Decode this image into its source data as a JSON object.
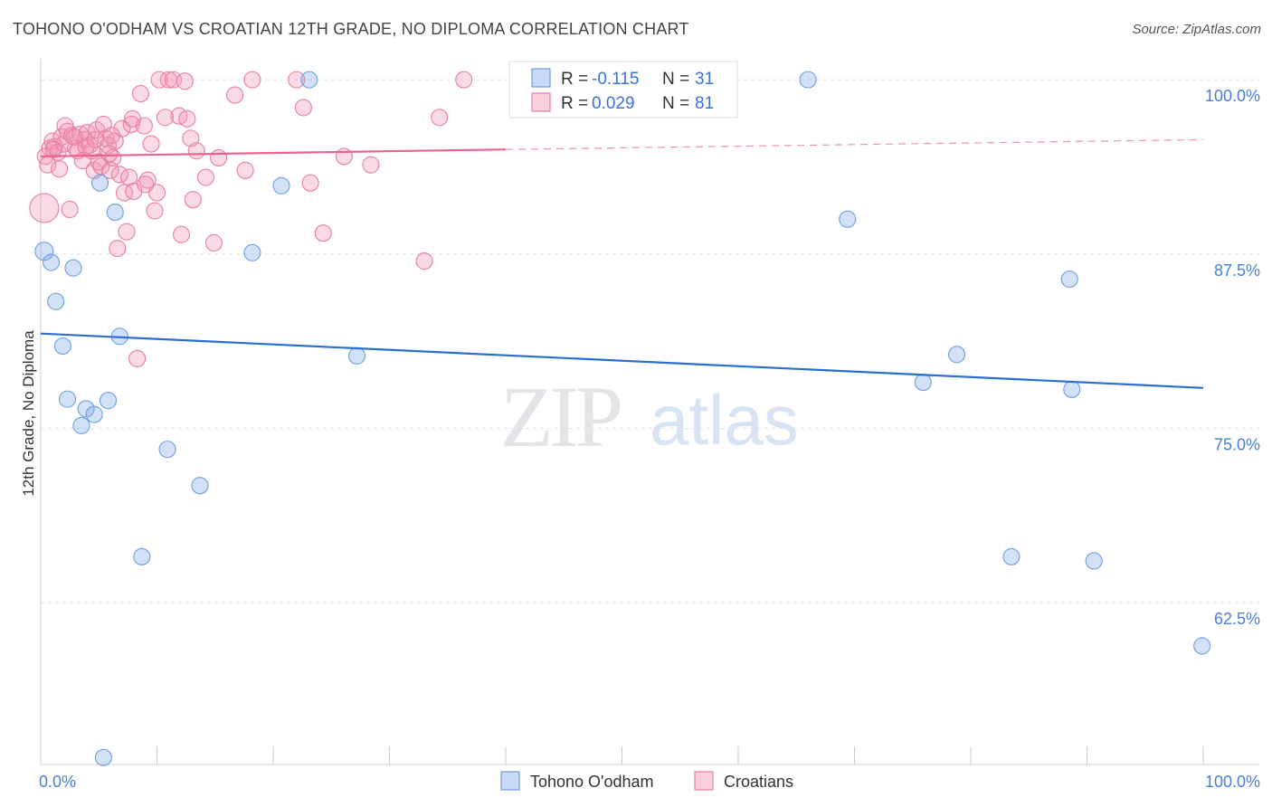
{
  "title": "TOHONO O'ODHAM VS CROATIAN 12TH GRADE, NO DIPLOMA CORRELATION CHART",
  "source": "Source: ZipAtlas.com",
  "watermark": {
    "zip": "ZIP",
    "atlas": "atlas"
  },
  "colors": {
    "blue": "#6f9fe0",
    "blue_fill": "rgba(130,170,230,0.35)",
    "blue_line": "#2a6fd0",
    "pink": "#e97fa0",
    "pink_fill": "rgba(240,150,180,0.35)",
    "pink_line": "#e8658f",
    "axis_text": "#4a7fd6",
    "grid": "#dde0e6"
  },
  "legend": {
    "rows": [
      {
        "r_label": "R = ",
        "r_value": "-0.115",
        "n_label": "N = ",
        "n_value": "31"
      },
      {
        "r_label": "R = ",
        "r_value": "0.029",
        "n_label": "N = ",
        "n_value": "81"
      }
    ]
  },
  "bottom_legend": [
    "Tohono O'odham",
    "Croatians"
  ],
  "chart_data": {
    "type": "scatter",
    "title": "TOHONO O'ODHAM VS CROATIAN 12TH GRADE, NO DIPLOMA CORRELATION CHART",
    "xlabel": "",
    "ylabel": "12th Grade, No Diploma",
    "xlim": [
      0,
      100
    ],
    "ylim": [
      50.9,
      101.5
    ],
    "x_tick_labels": [
      "0.0%",
      "100.0%"
    ],
    "y_ticks": [
      100.0,
      87.5,
      75.0,
      62.5
    ],
    "y_tick_labels": [
      "100.0%",
      "87.5%",
      "75.0%",
      "62.5%"
    ],
    "grid": true,
    "legend_position": "top-center",
    "series": [
      {
        "name": "Tohono O'odham",
        "color": "blue",
        "r": -0.115,
        "n": 31,
        "trend": {
          "x": [
            0,
            100
          ],
          "y": [
            81.8,
            77.9
          ]
        },
        "points": [
          [
            0.3,
            87.7,
            10
          ],
          [
            0.9,
            86.9,
            9
          ],
          [
            1.3,
            84.1,
            9
          ],
          [
            1.9,
            80.9,
            9
          ],
          [
            2.3,
            77.1,
            9
          ],
          [
            2.8,
            86.5,
            9
          ],
          [
            3.5,
            75.2,
            9
          ],
          [
            3.9,
            76.4,
            9
          ],
          [
            4.6,
            76.0,
            9
          ],
          [
            5.1,
            92.6,
            9
          ],
          [
            5.4,
            51.4,
            9
          ],
          [
            5.8,
            77.0,
            9
          ],
          [
            6.4,
            90.5,
            9
          ],
          [
            6.8,
            81.6,
            9
          ],
          [
            8.7,
            65.8,
            9
          ],
          [
            10.9,
            73.5,
            9
          ],
          [
            13.7,
            70.9,
            9
          ],
          [
            18.2,
            87.6,
            9
          ],
          [
            20.7,
            92.4,
            9
          ],
          [
            23.1,
            100.0,
            9
          ],
          [
            27.2,
            80.2,
            9
          ],
          [
            47.5,
            100.0,
            9
          ],
          [
            66.0,
            100.0,
            9
          ],
          [
            69.4,
            90.0,
            9
          ],
          [
            75.9,
            78.3,
            9
          ],
          [
            78.8,
            80.3,
            9
          ],
          [
            83.5,
            65.8,
            9
          ],
          [
            88.5,
            85.7,
            9
          ],
          [
            88.7,
            77.8,
            9
          ],
          [
            90.6,
            65.5,
            9
          ],
          [
            99.9,
            59.4,
            9
          ]
        ]
      },
      {
        "name": "Croatians",
        "color": "pink",
        "r": 0.029,
        "n": 81,
        "trend": {
          "x": [
            0,
            40,
            100
          ],
          "y": [
            94.5,
            95.0,
            95.7
          ]
        },
        "points": [
          [
            0.3,
            90.8,
            16
          ],
          [
            0.4,
            94.5,
            9
          ],
          [
            0.6,
            93.9,
            9
          ],
          [
            0.8,
            95.1,
            9
          ],
          [
            1.0,
            95.6,
            9
          ],
          [
            1.2,
            95.2,
            9
          ],
          [
            1.5,
            94.8,
            9
          ],
          [
            1.6,
            93.6,
            9
          ],
          [
            1.8,
            95.9,
            9
          ],
          [
            2.0,
            95.4,
            9
          ],
          [
            2.1,
            96.7,
            9
          ],
          [
            2.3,
            96.3,
            9
          ],
          [
            2.5,
            90.7,
            9
          ],
          [
            2.7,
            96.0,
            9
          ],
          [
            3.0,
            95.1,
            9
          ],
          [
            3.2,
            94.9,
            9
          ],
          [
            3.4,
            96.1,
            9
          ],
          [
            3.6,
            94.2,
            9
          ],
          [
            3.8,
            95.7,
            9
          ],
          [
            4.0,
            96.2,
            9
          ],
          [
            4.2,
            95.3,
            9
          ],
          [
            4.4,
            94.9,
            9
          ],
          [
            4.6,
            93.5,
            9
          ],
          [
            4.8,
            96.4,
            9
          ],
          [
            5.0,
            94.1,
            9
          ],
          [
            5.2,
            93.8,
            9
          ],
          [
            5.4,
            96.8,
            9
          ],
          [
            5.6,
            95.8,
            9
          ],
          [
            5.8,
            95.3,
            9
          ],
          [
            6.0,
            93.5,
            9
          ],
          [
            6.2,
            94.4,
            9
          ],
          [
            6.4,
            95.6,
            9
          ],
          [
            6.6,
            87.9,
            9
          ],
          [
            6.8,
            93.2,
            9
          ],
          [
            7.0,
            96.5,
            9
          ],
          [
            7.2,
            91.9,
            9
          ],
          [
            7.4,
            89.1,
            9
          ],
          [
            7.6,
            93.0,
            9
          ],
          [
            7.8,
            96.8,
            9
          ],
          [
            8.0,
            92.0,
            9
          ],
          [
            8.3,
            80.0,
            9
          ],
          [
            8.6,
            99.0,
            9
          ],
          [
            8.9,
            96.7,
            9
          ],
          [
            9.2,
            92.8,
            9
          ],
          [
            9.5,
            95.4,
            9
          ],
          [
            9.8,
            90.6,
            9
          ],
          [
            10.0,
            91.9,
            9
          ],
          [
            10.2,
            100.0,
            9
          ],
          [
            11.0,
            100.0,
            9
          ],
          [
            11.4,
            100.0,
            9
          ],
          [
            11.9,
            97.4,
            9
          ],
          [
            12.1,
            88.9,
            9
          ],
          [
            12.6,
            97.2,
            9
          ],
          [
            12.9,
            95.8,
            9
          ],
          [
            13.1,
            91.4,
            9
          ],
          [
            13.4,
            94.9,
            9
          ],
          [
            14.2,
            93.0,
            9
          ],
          [
            14.9,
            88.3,
            9
          ],
          [
            15.3,
            94.4,
            9
          ],
          [
            16.7,
            98.9,
            9
          ],
          [
            17.6,
            93.5,
            9
          ],
          [
            18.2,
            100.0,
            9
          ],
          [
            22.0,
            100.0,
            9
          ],
          [
            22.6,
            98.0,
            9
          ],
          [
            23.2,
            92.6,
            9
          ],
          [
            24.3,
            89.0,
            9
          ],
          [
            26.1,
            94.5,
            9
          ],
          [
            28.4,
            93.9,
            9
          ],
          [
            33.0,
            87.0,
            9
          ],
          [
            34.3,
            97.3,
            9
          ],
          [
            36.4,
            100.0,
            9
          ],
          [
            1.1,
            95.0,
            9
          ],
          [
            2.9,
            95.9,
            9
          ],
          [
            3.9,
            95.2,
            9
          ],
          [
            4.7,
            95.7,
            9
          ],
          [
            5.9,
            94.7,
            9
          ],
          [
            7.9,
            97.2,
            9
          ],
          [
            9.0,
            92.5,
            9
          ],
          [
            10.7,
            97.3,
            9
          ],
          [
            12.4,
            99.9,
            9
          ],
          [
            6.1,
            96.0,
            9
          ]
        ]
      }
    ]
  }
}
